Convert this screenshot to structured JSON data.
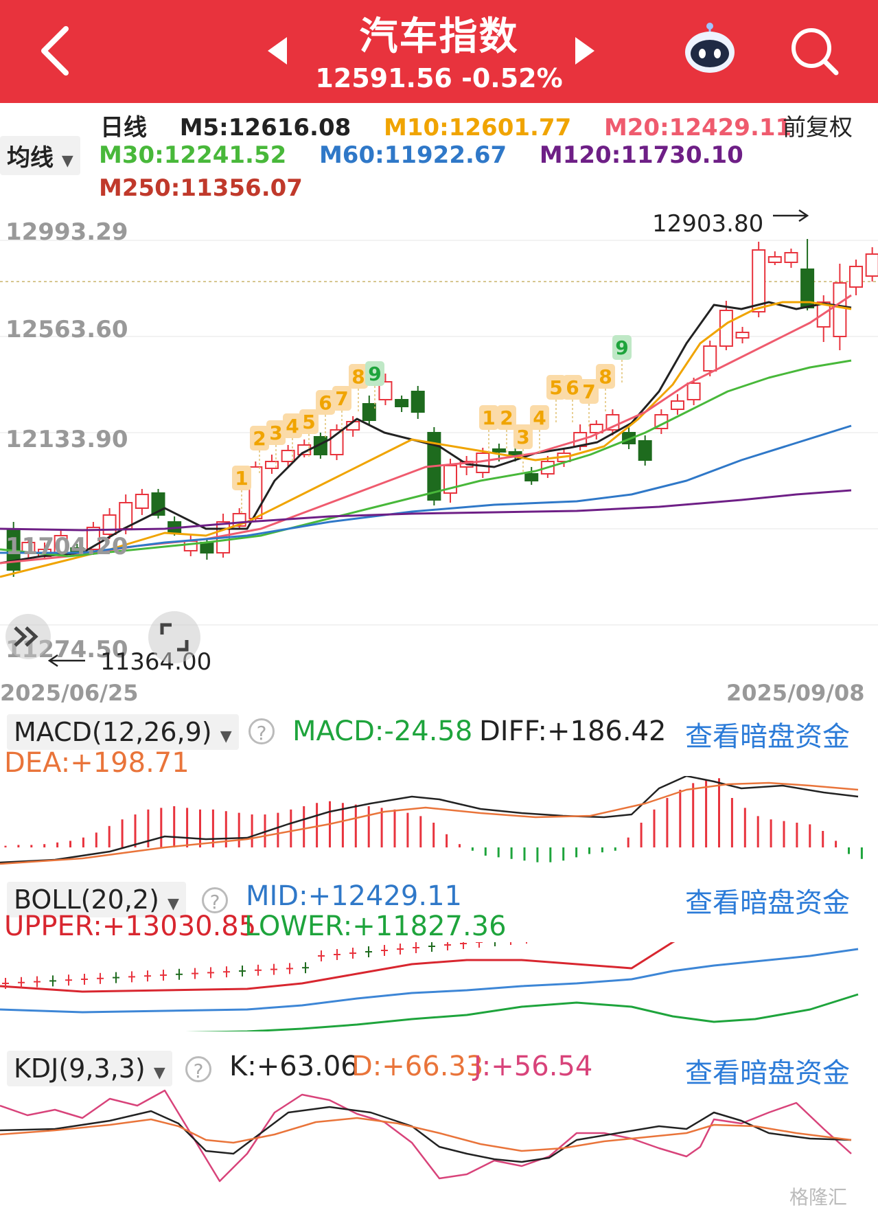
{
  "header": {
    "title": "汽车指数",
    "price": "12591.56",
    "change": "-0.52%",
    "bg_color": "#e8333d"
  },
  "ma": {
    "period": "日线",
    "m5": "M5:12616.08",
    "m10": "M10:12601.77",
    "m20": "M20:12429.11",
    "m30": "M30:12241.52",
    "m60": "M60:11922.67",
    "m120": "M120:11730.10",
    "m250": "M250:11356.07",
    "adjust": "前复权",
    "selector": "均线",
    "colors": {
      "m5": "#222222",
      "m10": "#f0a400",
      "m20": "#ef5b6e",
      "m30": "#48b83a",
      "m60": "#2f78c8",
      "m120": "#6e1f86",
      "m250": "#c0392b"
    }
  },
  "main_chart": {
    "y_labels": [
      "12993.29",
      "12563.60",
      "12133.90",
      "11704.20",
      "11274.50"
    ],
    "high_label": "12903.80",
    "low_label": "11364.00",
    "date_start": "2025/06/25",
    "date_end": "2025/09/08",
    "td_buy": [
      "1",
      "2",
      "3",
      "4",
      "5",
      "6",
      "7",
      "8",
      "9"
    ],
    "td_second": [
      "1",
      "2",
      "3",
      "4",
      "5",
      "6",
      "7",
      "8",
      "9"
    ]
  },
  "macd": {
    "selector": "MACD(12,26,9)",
    "macd": "MACD:-24.58",
    "diff": "DIFF:+186.42",
    "dea": "DEA:+198.71",
    "link": "查看暗盘资金"
  },
  "boll": {
    "selector": "BOLL(20,2)",
    "mid": "MID:+12429.11",
    "upper": "UPPER:+13030.85",
    "lower": "LOWER:+11827.36",
    "link": "查看暗盘资金"
  },
  "kdj": {
    "selector": "KDJ(9,3,3)",
    "k": "K:+63.06",
    "d": "D:+66.33",
    "j": "J:+56.54",
    "link": "查看暗盘资金"
  },
  "watermark": "格隆汇"
}
